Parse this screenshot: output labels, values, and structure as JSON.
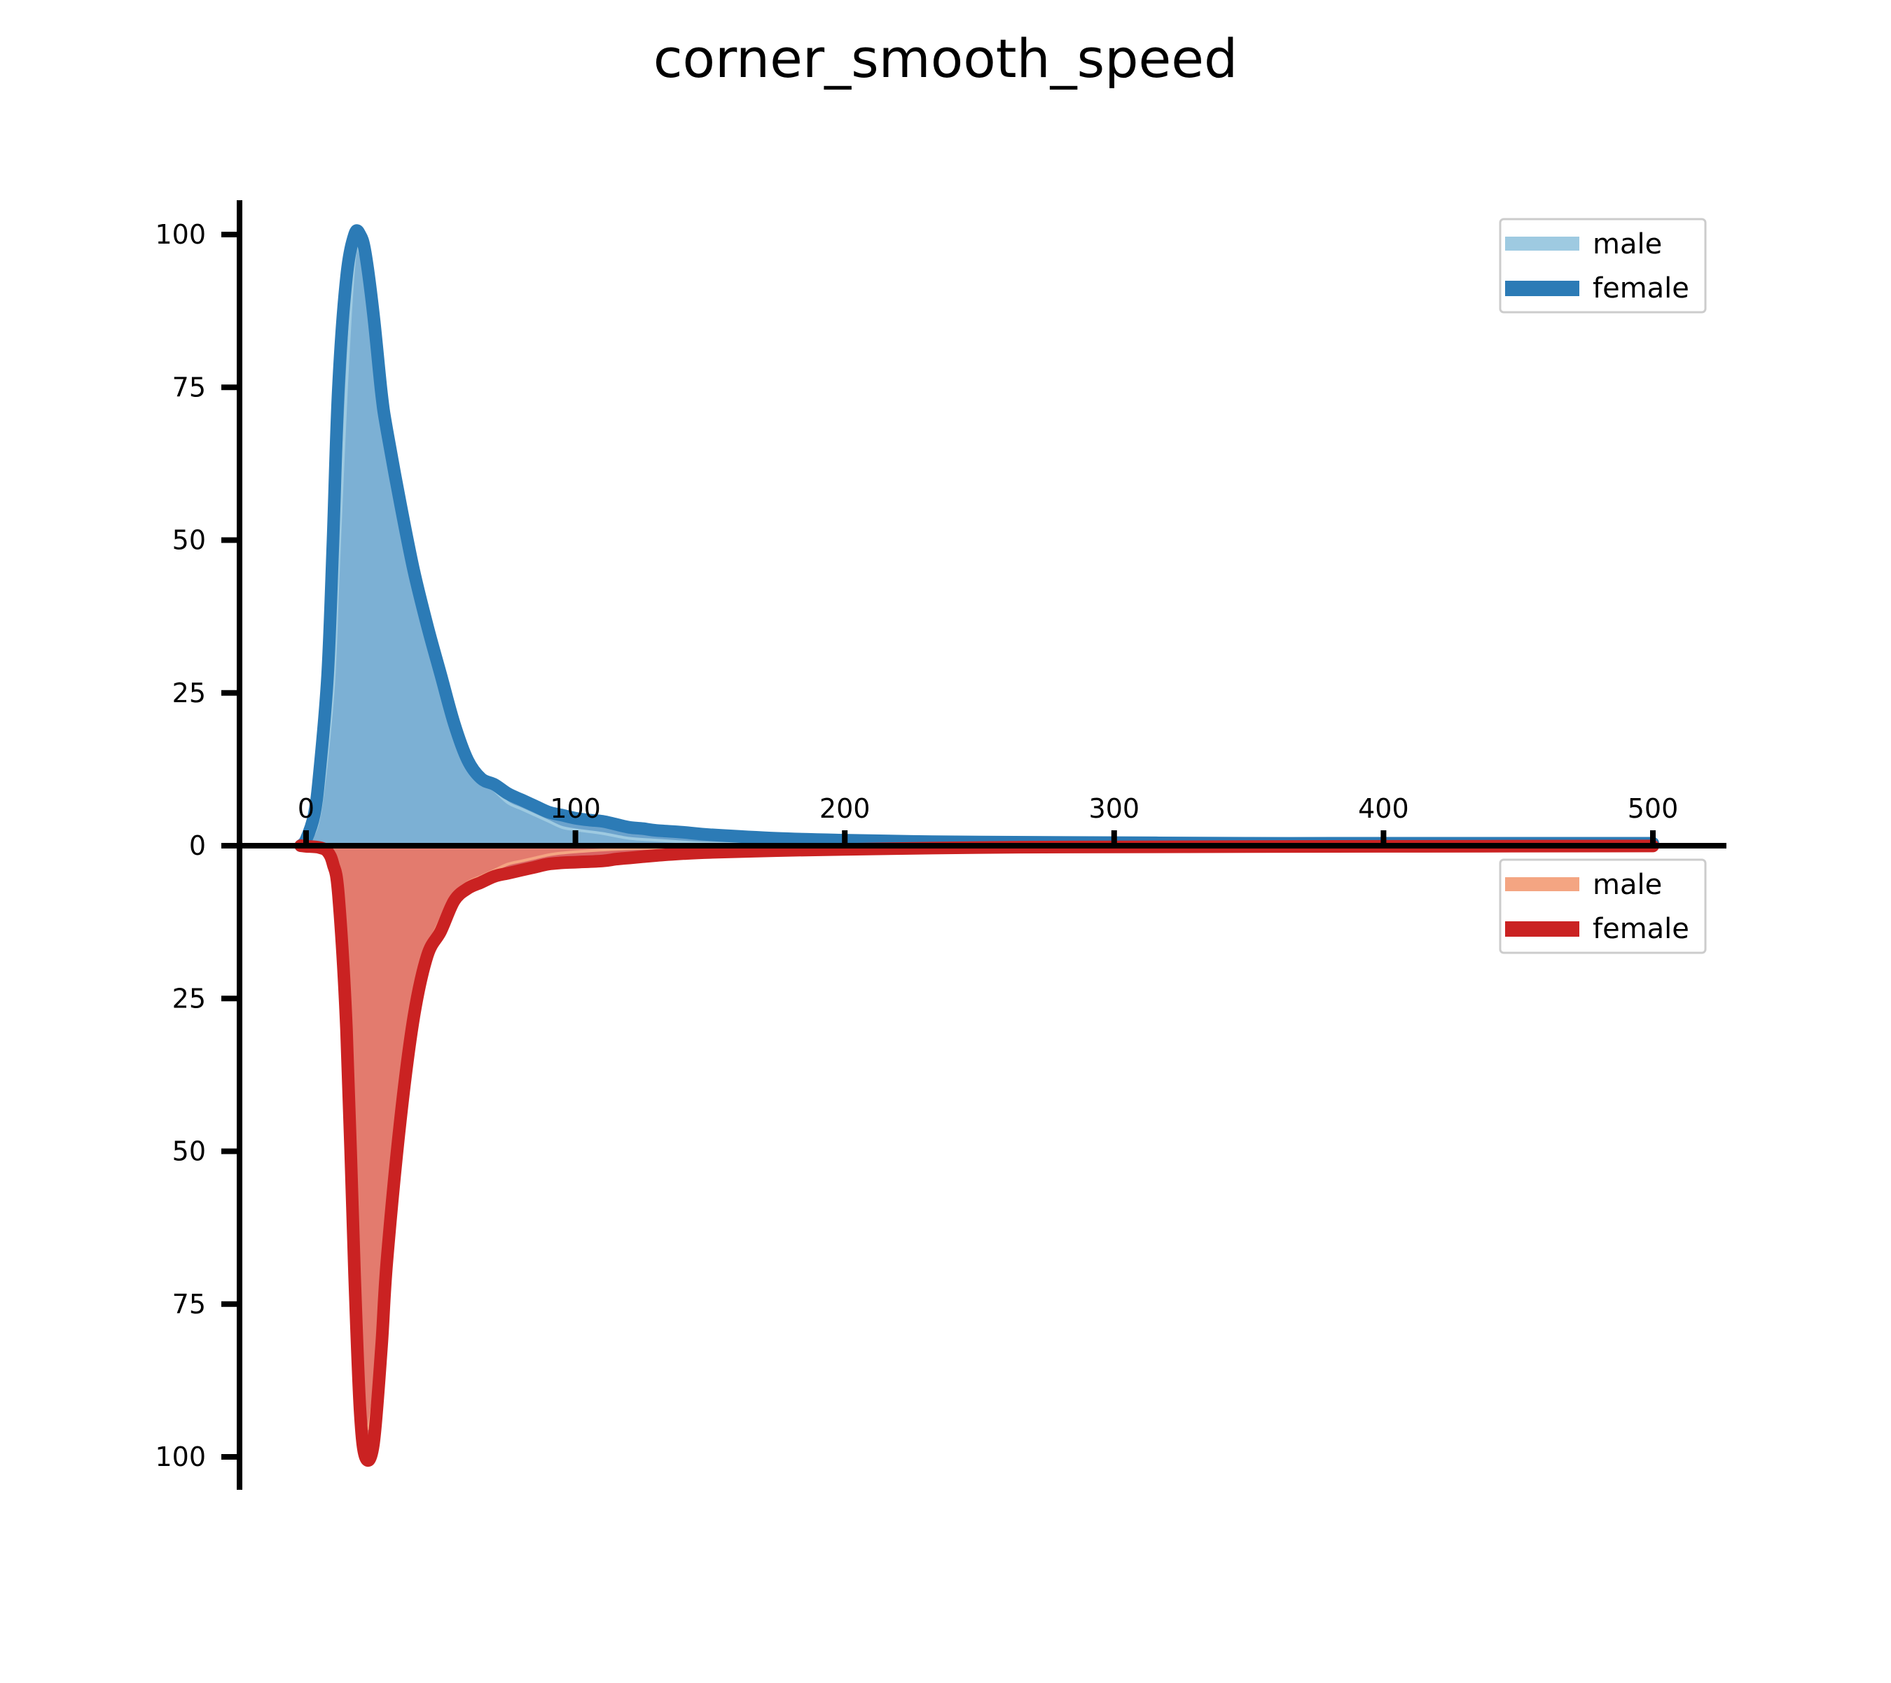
{
  "chart_data": {
    "type": "area",
    "title": "corner_smooth_speed",
    "xlabel": "",
    "ylabel": "",
    "xlim": [
      -25,
      525
    ],
    "ylim_top": [
      0,
      105
    ],
    "ylim_bottom": [
      0,
      105
    ],
    "x_ticks": [
      0,
      100,
      200,
      300,
      400,
      500
    ],
    "y_ticks_top": [
      0,
      25,
      50,
      75,
      100
    ],
    "y_ticks_bottom": [
      25,
      50,
      75,
      100
    ],
    "grid": false,
    "top_panel": {
      "legend_position": "top-right",
      "series": [
        {
          "name": "male",
          "color": "#9ecae1",
          "style": "filled",
          "x": [
            -2,
            0,
            5,
            10,
            12,
            15,
            18,
            20,
            22,
            25,
            30,
            35,
            40,
            45,
            50,
            55,
            60,
            65,
            70,
            75,
            80,
            85,
            90,
            95,
            100,
            110,
            120,
            130,
            140,
            150,
            175,
            200,
            250,
            300,
            350,
            400,
            450,
            500
          ],
          "values": [
            0,
            0.5,
            5,
            25,
            45,
            75,
            96,
            97,
            92,
            82,
            68,
            57,
            45,
            35,
            26,
            19,
            14,
            11,
            9,
            7,
            6,
            5,
            4,
            3,
            2.6,
            2,
            1.2,
            0.9,
            0.6,
            0.4,
            0.2,
            0.1,
            0.05,
            0.02,
            0.01,
            0,
            0,
            0
          ]
        },
        {
          "name": "female",
          "color": "#2c7bb6",
          "style": "line",
          "x": [
            -2,
            0,
            3,
            5,
            8,
            10,
            12,
            15,
            18,
            20,
            22,
            25,
            28,
            30,
            35,
            40,
            45,
            50,
            55,
            60,
            65,
            70,
            75,
            80,
            85,
            90,
            95,
            100,
            105,
            110,
            115,
            120,
            125,
            130,
            140,
            150,
            175,
            200,
            225,
            250,
            300,
            350,
            400,
            450,
            500
          ],
          "values": [
            0,
            1,
            5,
            12,
            28,
            50,
            75,
            93,
            100,
            100,
            97,
            87,
            74,
            68,
            56,
            45,
            36,
            28,
            20,
            14,
            11,
            10,
            8.5,
            7.5,
            6.5,
            5.5,
            5,
            4.5,
            4.2,
            4,
            3.5,
            3,
            2.8,
            2.5,
            2.2,
            1.8,
            1.2,
            0.9,
            0.7,
            0.6,
            0.5,
            0.4,
            0.4,
            0.4,
            0.4
          ]
        }
      ]
    },
    "bottom_panel": {
      "legend_position": "top-right",
      "series": [
        {
          "name": "male",
          "color": "#f4a582",
          "style": "filled",
          "x": [
            -2,
            0,
            5,
            10,
            15,
            18,
            20,
            22,
            25,
            28,
            30,
            35,
            40,
            45,
            50,
            55,
            60,
            65,
            70,
            75,
            80,
            85,
            90,
            95,
            100,
            110,
            120,
            130,
            150,
            175,
            200,
            250,
            300,
            400,
            500
          ],
          "values": [
            0,
            0.1,
            0.5,
            3,
            20,
            50,
            80,
            95,
            90,
            72,
            60,
            40,
            25,
            17,
            12,
            8,
            6,
            5,
            4,
            3,
            2.5,
            2,
            1.5,
            1.2,
            1,
            0.7,
            0.5,
            0.4,
            0.3,
            0.2,
            0.1,
            0.05,
            0,
            0,
            0
          ]
        },
        {
          "name": "female",
          "color": "#ca2222",
          "style": "line",
          "x": [
            -2,
            0,
            5,
            8,
            10,
            12,
            15,
            18,
            20,
            22,
            25,
            28,
            30,
            35,
            40,
            45,
            50,
            55,
            60,
            65,
            70,
            75,
            80,
            85,
            90,
            95,
            100,
            110,
            115,
            120,
            125,
            130,
            140,
            150,
            175,
            200,
            250,
            300,
            400,
            500
          ],
          "values": [
            0,
            0.1,
            0.3,
            1,
            3,
            8,
            30,
            70,
            92,
            100,
            98,
            82,
            68,
            45,
            28,
            18,
            14,
            9,
            7,
            6,
            5,
            4.5,
            4,
            3.5,
            3,
            2.8,
            2.7,
            2.5,
            2.2,
            2,
            1.8,
            1.6,
            1.3,
            1.1,
            0.8,
            0.6,
            0.3,
            0.2,
            0.1,
            0.05
          ]
        }
      ]
    }
  }
}
